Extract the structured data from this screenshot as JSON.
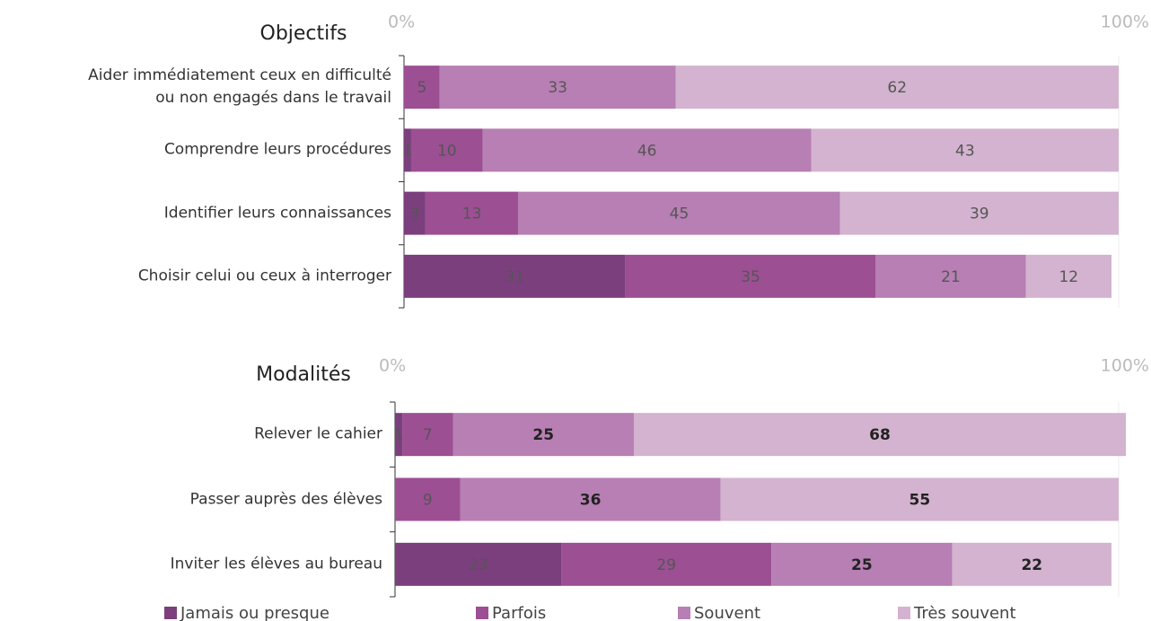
{
  "legend": [
    {
      "name": "Jamais ou presque",
      "color": "#7b3f7d"
    },
    {
      "name": "Parfois",
      "color": "#9c4f93"
    },
    {
      "name": "Souvent",
      "color": "#b77fb3"
    },
    {
      "name": "Très souvent",
      "color": "#d3b3cf"
    }
  ],
  "chart_data": [
    {
      "type": "stacked_bar_horizontal",
      "title": "Objectifs",
      "categories": [
        "Aider immédiatement ceux en difficulté\nou non engagés dans le travail",
        "Comprendre leurs procédures",
        "Identifier leurs connaissances",
        "Choisir celui ou ceux à interroger"
      ],
      "series": [
        {
          "values": [
            null,
            1,
            3,
            31
          ]
        },
        {
          "values": [
            5,
            10,
            13,
            35
          ]
        },
        {
          "values": [
            33,
            46,
            45,
            21
          ]
        },
        {
          "values": [
            62,
            43,
            39,
            12
          ]
        }
      ],
      "xlim": [
        0,
        100
      ],
      "xticks": [
        {
          "value": 0,
          "label": "0%"
        },
        {
          "value": 100,
          "label": "100%"
        }
      ]
    },
    {
      "type": "stacked_bar_horizontal",
      "title": "Modalités",
      "categories": [
        "Relever le cahier",
        "Passer auprès des élèves",
        "Inviter les élèves au bureau"
      ],
      "series": [
        {
          "values": [
            1,
            null,
            23
          ]
        },
        {
          "values": [
            7,
            9,
            29
          ]
        },
        {
          "values": [
            25,
            36,
            25
          ]
        },
        {
          "values": [
            68,
            55,
            22
          ]
        }
      ],
      "xlim": [
        0,
        100
      ],
      "xticks": [
        {
          "value": 0,
          "label": "0%"
        },
        {
          "value": 100,
          "label": "100%"
        }
      ]
    }
  ]
}
